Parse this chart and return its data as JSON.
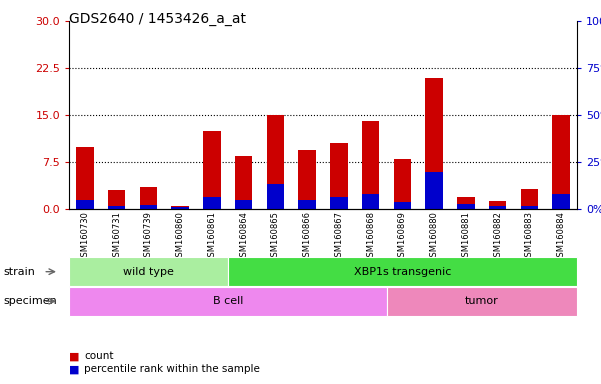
{
  "title": "GDS2640 / 1453426_a_at",
  "samples": [
    "GSM160730",
    "GSM160731",
    "GSM160739",
    "GSM160860",
    "GSM160861",
    "GSM160864",
    "GSM160865",
    "GSM160866",
    "GSM160867",
    "GSM160868",
    "GSM160869",
    "GSM160880",
    "GSM160881",
    "GSM160882",
    "GSM160883",
    "GSM160884"
  ],
  "count_values": [
    10.0,
    3.0,
    3.5,
    0.5,
    12.5,
    8.5,
    15.0,
    9.5,
    10.5,
    14.0,
    8.0,
    21.0,
    2.0,
    1.3,
    3.2,
    15.0
  ],
  "percentile_values": [
    1.5,
    0.6,
    0.7,
    0.3,
    2.0,
    1.5,
    4.0,
    1.5,
    2.0,
    2.5,
    1.2,
    6.0,
    0.8,
    0.5,
    0.6,
    2.5
  ],
  "count_color": "#cc0000",
  "percentile_color": "#0000cc",
  "ylim_left": [
    0,
    30
  ],
  "ylim_right": [
    0,
    100
  ],
  "yticks_left": [
    0,
    7.5,
    15,
    22.5,
    30
  ],
  "yticks_right": [
    0,
    25,
    50,
    75,
    100
  ],
  "grid_lines": [
    7.5,
    15,
    22.5
  ],
  "strain_groups": [
    {
      "label": "wild type",
      "start": 0,
      "end": 4,
      "color": "#aaeea0"
    },
    {
      "label": "XBP1s transgenic",
      "start": 5,
      "end": 15,
      "color": "#44dd44"
    }
  ],
  "specimen_groups": [
    {
      "label": "B cell",
      "start": 0,
      "end": 9,
      "color": "#ee88ee"
    },
    {
      "label": "tumor",
      "start": 10,
      "end": 15,
      "color": "#ee88bb"
    }
  ],
  "strain_label": "strain",
  "specimen_label": "specimen",
  "legend_count": "count",
  "legend_pct": "percentile rank within the sample",
  "xtick_bg": "#cccccc",
  "plot_bg": "#ffffff"
}
